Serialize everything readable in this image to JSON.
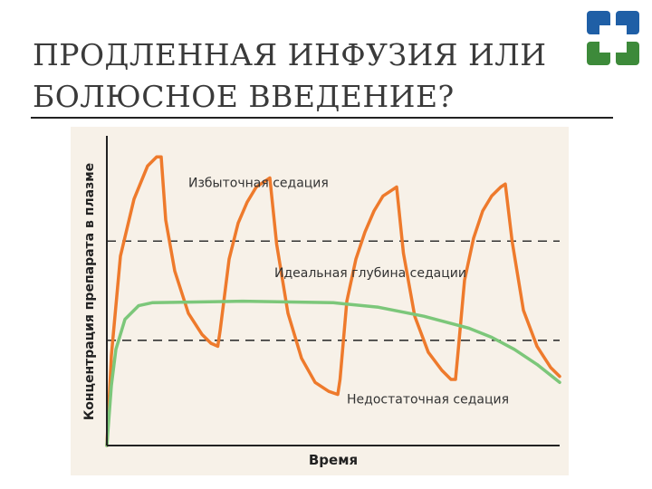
{
  "slide": {
    "title_line1": "ПРОДЛЕННАЯ ИНФУЗИЯ ИЛИ",
    "title_line2": "БОЛЮСНОЕ ВВЕДЕНИЕ?",
    "logo_icon": "cross-logo-icon",
    "colors": {
      "logo_blue": "#1f5fa6",
      "logo_green": "#3d8a3a"
    }
  },
  "chart_data": {
    "type": "line",
    "xlabel": "Время",
    "ylabel": "Концентрация препарата в плазме",
    "xlim": [
      0,
      100
    ],
    "ylim": [
      0,
      100
    ],
    "grid": false,
    "colors": {
      "bolus": "#ee7a2c",
      "infusion": "#7cc77a",
      "background": "#f7f1e8",
      "thresholds": "#333333"
    },
    "thresholds": [
      {
        "y": 68,
        "style": "dashed"
      },
      {
        "y": 35,
        "style": "dashed"
      }
    ],
    "annotations": [
      {
        "text": "Избыточная седация",
        "x": 18,
        "y": 86
      },
      {
        "text": "Идеальная глубина седации",
        "x": 37,
        "y": 56
      },
      {
        "text": "Недостаточная седация",
        "x": 53,
        "y": 14
      }
    ],
    "series": [
      {
        "kind": "bolus",
        "points": [
          [
            0,
            0
          ],
          [
            1,
            30
          ],
          [
            3,
            63
          ],
          [
            6,
            82
          ],
          [
            9,
            93
          ],
          [
            11,
            96
          ],
          [
            12,
            96
          ],
          [
            13,
            75
          ],
          [
            15,
            58
          ],
          [
            18,
            44
          ],
          [
            21,
            37
          ],
          [
            23,
            34
          ],
          [
            24.5,
            33
          ],
          [
            25,
            38
          ],
          [
            27,
            62
          ],
          [
            29,
            74
          ],
          [
            31,
            81
          ],
          [
            33,
            86
          ],
          [
            35,
            88
          ],
          [
            36,
            89
          ],
          [
            37.5,
            67
          ],
          [
            40,
            44
          ],
          [
            43,
            29
          ],
          [
            46,
            21
          ],
          [
            49,
            18
          ],
          [
            51,
            17
          ],
          [
            51.5,
            22
          ],
          [
            53,
            48
          ],
          [
            55,
            62
          ],
          [
            57,
            71
          ],
          [
            59,
            78
          ],
          [
            61,
            83
          ],
          [
            63,
            85
          ],
          [
            64,
            86
          ],
          [
            65.5,
            64
          ],
          [
            68,
            43
          ],
          [
            71,
            31
          ],
          [
            74,
            25
          ],
          [
            76,
            22
          ],
          [
            77,
            22
          ],
          [
            77.5,
            30
          ],
          [
            79,
            55
          ],
          [
            81,
            69
          ],
          [
            83,
            78
          ],
          [
            85,
            83
          ],
          [
            87,
            86
          ],
          [
            88,
            87
          ],
          [
            89.5,
            68
          ],
          [
            92,
            45
          ],
          [
            95,
            33
          ],
          [
            98,
            26
          ],
          [
            100,
            23
          ]
        ]
      },
      {
        "kind": "infusion",
        "points": [
          [
            0,
            0
          ],
          [
            1,
            20
          ],
          [
            2,
            32
          ],
          [
            4,
            42
          ],
          [
            7,
            46.5
          ],
          [
            10,
            47.5
          ],
          [
            30,
            48
          ],
          [
            50,
            47.5
          ],
          [
            60,
            46
          ],
          [
            70,
            43
          ],
          [
            80,
            39
          ],
          [
            85,
            36
          ],
          [
            90,
            32
          ],
          [
            95,
            27
          ],
          [
            100,
            21
          ]
        ]
      }
    ]
  }
}
